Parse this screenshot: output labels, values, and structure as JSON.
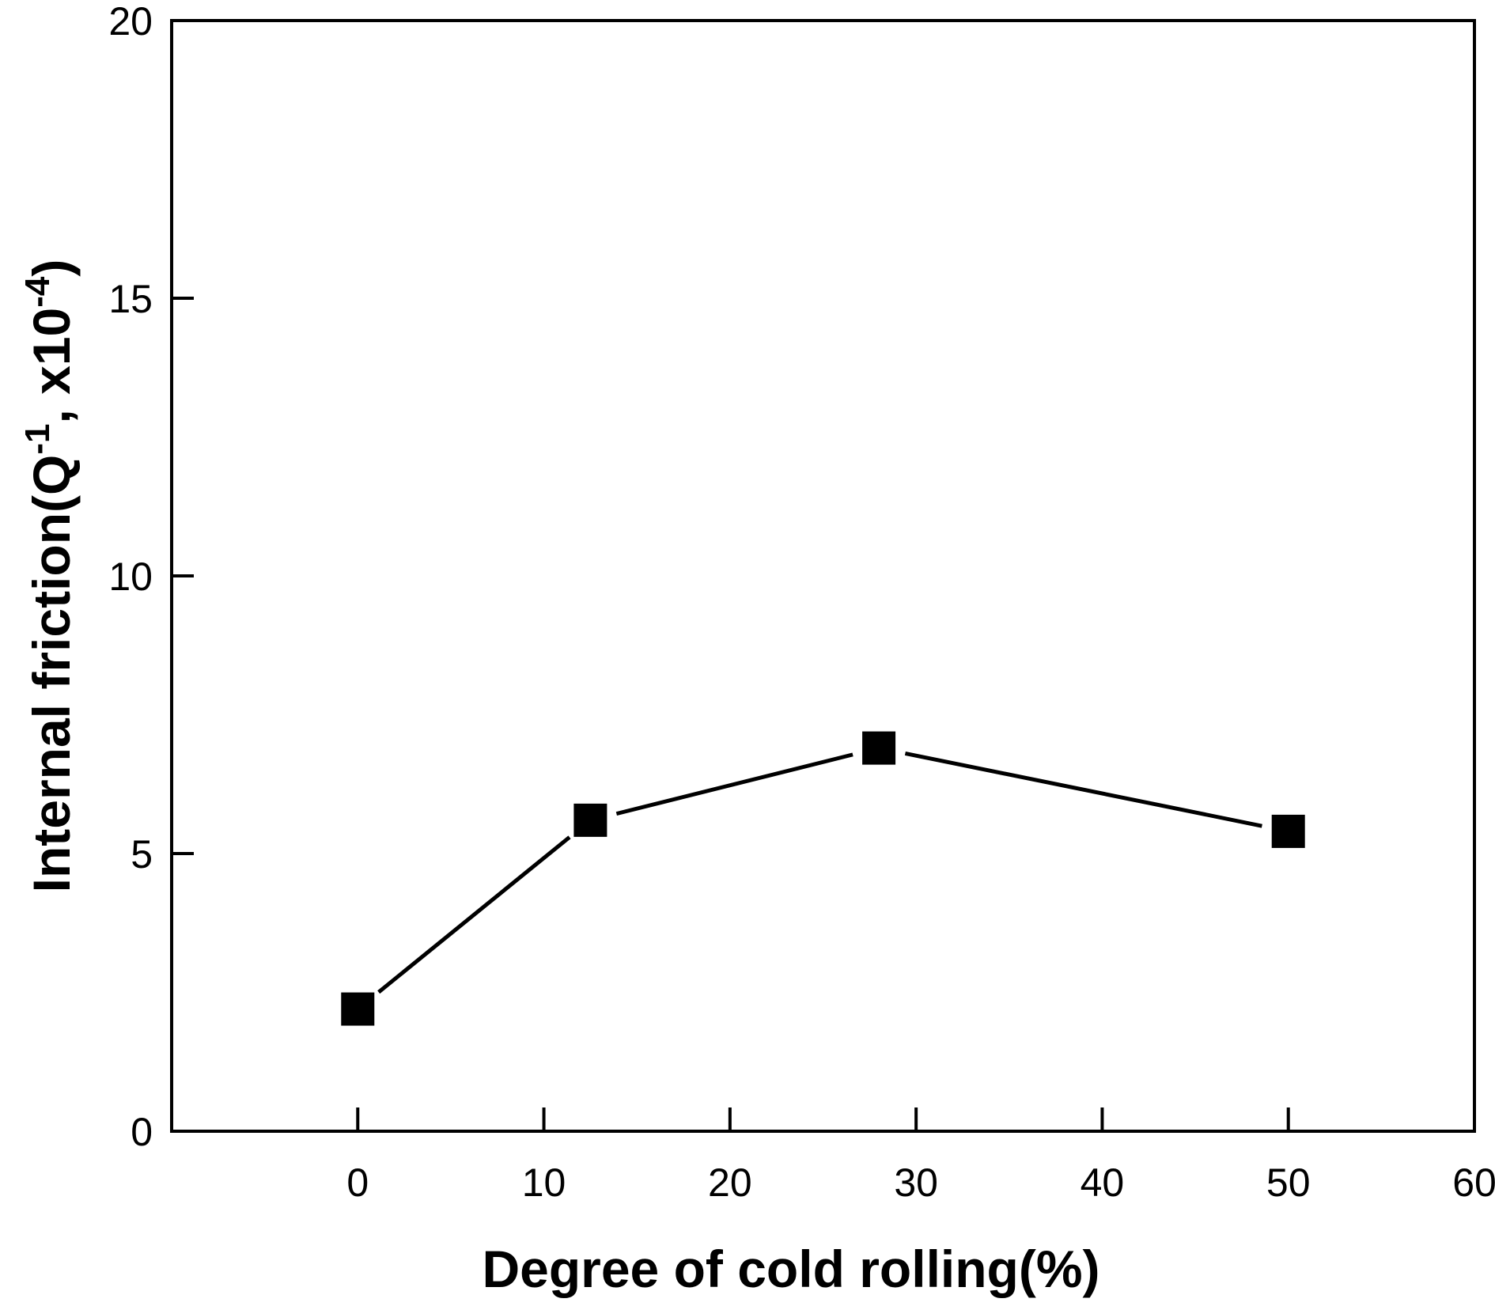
{
  "chart_data": {
    "type": "line",
    "title": "",
    "xlabel": "Degree of cold rolling(%)",
    "ylabel": {
      "prefix": "Internal friction(Q",
      "sup1": "-1",
      "middle": ", x10",
      "sup2": "-4",
      "suffix": ")"
    },
    "xlim": [
      -10,
      60
    ],
    "ylim": [
      0,
      20
    ],
    "xticks": [
      0,
      10,
      20,
      30,
      40,
      50,
      60
    ],
    "yticks": [
      0,
      5,
      10,
      15,
      20
    ],
    "grid": false,
    "legend": "none",
    "marker": "square",
    "series": [
      {
        "x": [
          0,
          12.5,
          28,
          50
        ],
        "y": [
          2.2,
          5.6,
          6.9,
          5.4
        ]
      }
    ],
    "colors": {
      "line": "#000000",
      "marker": "#000000",
      "frame": "#000000"
    }
  }
}
